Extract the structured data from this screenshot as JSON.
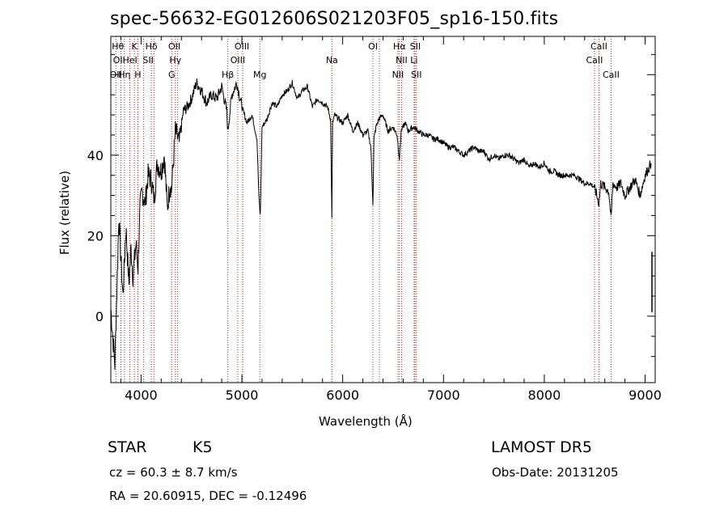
{
  "chart_data": {
    "type": "line",
    "title": "spec-56632-EG012606S021203F05_sp16-150.fits",
    "xlabel": "Wavelength (Å)",
    "ylabel": "Flux (relative)",
    "xlim": [
      3700,
      9100
    ],
    "ylim": [
      -16.5,
      69.5
    ],
    "xticks": [
      4000,
      5000,
      6000,
      7000,
      8000,
      9000
    ],
    "yticks": [
      0,
      20,
      40
    ],
    "grid": false,
    "legend": "none",
    "line_color": "#000000",
    "marker_color": "#b22222",
    "series": [
      {
        "x": [
          3700,
          3740,
          3780,
          3800,
          3820,
          3850,
          3880,
          3900,
          3920,
          3950,
          3970,
          3990,
          4010,
          4040,
          4070,
          4100,
          4130,
          4160,
          4200,
          4230,
          4260,
          4290,
          4300,
          4320,
          4340,
          4380,
          4420,
          4460,
          4500,
          4550,
          4600,
          4650,
          4700,
          4750,
          4800,
          4850,
          4860,
          4900,
          4950,
          5000,
          5050,
          5100,
          5150,
          5170,
          5183,
          5200,
          5250,
          5300,
          5350,
          5400,
          5450,
          5500,
          5550,
          5600,
          5650,
          5700,
          5750,
          5800,
          5850,
          5880,
          5893,
          5900,
          5920,
          5960,
          6000,
          6050,
          6100,
          6150,
          6200,
          6250,
          6280,
          6300,
          6310,
          6330,
          6360,
          6400,
          6450,
          6500,
          6540,
          6563,
          6580,
          6620,
          6650,
          6700,
          6750,
          6800,
          6850,
          6900,
          6950,
          7000,
          7050,
          7100,
          7150,
          7200,
          7250,
          7300,
          7350,
          7400,
          7450,
          7500,
          7550,
          7600,
          7650,
          7700,
          7750,
          7800,
          7850,
          7900,
          7950,
          8000,
          8050,
          8100,
          8150,
          8200,
          8250,
          8300,
          8350,
          8400,
          8450,
          8500,
          8520,
          8542,
          8560,
          8600,
          8640,
          8662,
          8680,
          8720,
          8760,
          8800,
          8850,
          8900,
          8950,
          9000,
          9040,
          9060
        ],
        "y": [
          2,
          -12,
          25,
          14,
          5,
          22,
          8,
          17,
          10,
          18,
          12,
          27,
          31,
          28,
          35,
          34,
          29,
          38,
          36,
          40,
          27,
          33,
          31,
          38,
          46,
          43,
          51,
          52,
          54,
          58,
          56,
          53,
          55,
          54,
          57,
          51,
          46,
          55,
          58,
          52,
          48,
          50,
          44,
          29,
          25,
          47,
          49,
          53,
          52,
          55,
          56,
          58,
          54,
          56,
          57,
          52,
          54,
          53,
          52,
          49,
          24,
          48,
          50,
          49,
          48,
          50,
          46,
          48,
          45,
          46,
          42,
          28,
          44,
          47,
          49,
          50,
          46,
          47,
          45,
          39,
          46,
          48,
          46,
          47,
          46,
          45,
          45,
          44,
          44,
          43,
          42,
          42,
          41,
          40,
          41,
          42,
          41,
          41,
          39,
          40,
          39,
          40,
          40,
          39,
          38,
          39,
          37,
          38,
          37,
          38,
          36,
          36,
          35,
          35,
          35,
          35,
          34,
          33,
          33,
          32,
          30,
          28,
          33,
          32,
          31,
          24,
          33,
          32,
          33,
          30,
          32,
          34,
          30,
          35,
          37,
          38
        ]
      }
    ],
    "line_markers": [
      {
        "x": 3750
      },
      {
        "x": 3800
      },
      {
        "x": 3835
      },
      {
        "x": 3889
      },
      {
        "x": 3934
      },
      {
        "x": 3968
      },
      {
        "x": 4026
      },
      {
        "x": 4102
      },
      {
        "x": 4128
      },
      {
        "x": 4304
      },
      {
        "x": 4340
      },
      {
        "x": 4363
      },
      {
        "x": 4861
      },
      {
        "x": 4959
      },
      {
        "x": 5007
      },
      {
        "x": 5178
      },
      {
        "x": 5893
      },
      {
        "x": 6300
      },
      {
        "x": 6364
      },
      {
        "x": 6548
      },
      {
        "x": 6563
      },
      {
        "x": 6584
      },
      {
        "x": 6708
      },
      {
        "x": 6716
      },
      {
        "x": 6731
      },
      {
        "x": 8498
      },
      {
        "x": 8542
      },
      {
        "x": 8662
      }
    ],
    "line_labels": [
      {
        "text": "Hθ",
        "x": 3770,
        "row": 1
      },
      {
        "text": "K",
        "x": 3934,
        "row": 1
      },
      {
        "text": "Hδ",
        "x": 4102,
        "row": 1
      },
      {
        "text": "OII",
        "x": 4330,
        "row": 1
      },
      {
        "text": "OIII",
        "x": 5000,
        "row": 1
      },
      {
        "text": "OI",
        "x": 6300,
        "row": 1
      },
      {
        "text": "Hα",
        "x": 6563,
        "row": 1
      },
      {
        "text": "SII",
        "x": 6720,
        "row": 1
      },
      {
        "text": "CaII",
        "x": 8542,
        "row": 1
      },
      {
        "text": "OI",
        "x": 3770,
        "row": 2
      },
      {
        "text": "HeI",
        "x": 3890,
        "row": 2
      },
      {
        "text": "SII",
        "x": 4070,
        "row": 2
      },
      {
        "text": "Hγ",
        "x": 4340,
        "row": 2
      },
      {
        "text": "OIII",
        "x": 4959,
        "row": 2
      },
      {
        "text": "Na",
        "x": 5893,
        "row": 2
      },
      {
        "text": "NII",
        "x": 6584,
        "row": 2
      },
      {
        "text": "Li",
        "x": 6708,
        "row": 2
      },
      {
        "text": "CaII",
        "x": 8498,
        "row": 2
      },
      {
        "text": "OII",
        "x": 3750,
        "row": 3
      },
      {
        "text": "Hη",
        "x": 3835,
        "row": 3
      },
      {
        "text": "H",
        "x": 3968,
        "row": 3
      },
      {
        "text": "G",
        "x": 4304,
        "row": 3
      },
      {
        "text": "Hβ",
        "x": 4861,
        "row": 3
      },
      {
        "text": "Mg",
        "x": 5178,
        "row": 3
      },
      {
        "text": "NII",
        "x": 6548,
        "row": 3
      },
      {
        "text": "SII",
        "x": 6731,
        "row": 3
      },
      {
        "text": "CaII",
        "x": 8662,
        "row": 3
      }
    ]
  },
  "info": {
    "object_class": "STAR",
    "subclass": "K5",
    "survey": "LAMOST DR5",
    "redshift": "cz = 60.3 ± 8.7 km/s",
    "obs_date": "Obs-Date: 20131205",
    "coords": "RA =  20.60915, DEC =  -0.12496"
  }
}
